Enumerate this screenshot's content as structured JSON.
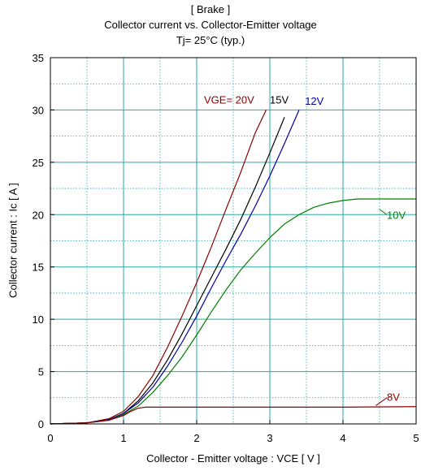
{
  "title": {
    "line1": "[ Brake ]",
    "line2": "Collector current  vs.  Collector-Emitter voltage",
    "line3": "Tj= 25°C  (typ.)"
  },
  "chart_data": {
    "type": "line",
    "title": "Collector current  vs.  Collector-Emitter voltage",
    "xlabel": "Collector - Emitter voltage  :  VCE  [ V ]",
    "ylabel": "Collector current  :  Ic  [ A ]",
    "xlim": [
      0,
      5
    ],
    "ylim": [
      0,
      35
    ],
    "x_ticks": [
      "0",
      "1",
      "2",
      "3",
      "4",
      "5"
    ],
    "y_ticks": [
      "0",
      "5",
      "10",
      "15",
      "20",
      "25",
      "30",
      "35"
    ],
    "grid": true,
    "series": [
      {
        "name": "VGE= 20V",
        "color": "#8b0000",
        "x": [
          0,
          0.5,
          0.8,
          1.0,
          1.2,
          1.4,
          1.6,
          1.8,
          2.0,
          2.2,
          2.4,
          2.6,
          2.8,
          2.95
        ],
        "y": [
          0,
          0.1,
          0.5,
          1.2,
          2.6,
          4.6,
          7.3,
          10.3,
          13.5,
          16.9,
          20.5,
          24.0,
          27.8,
          30.0
        ]
      },
      {
        "name": "15V",
        "color": "#000000",
        "x": [
          0,
          0.5,
          0.8,
          1.0,
          1.2,
          1.4,
          1.6,
          1.8,
          2.0,
          2.2,
          2.4,
          2.6,
          2.8,
          3.0,
          3.2
        ],
        "y": [
          0,
          0.1,
          0.4,
          1.0,
          2.2,
          3.9,
          6.1,
          8.6,
          11.3,
          14.0,
          16.7,
          19.5,
          22.6,
          25.9,
          29.3
        ]
      },
      {
        "name": "12V",
        "color": "#0000a0",
        "x": [
          0,
          0.5,
          0.8,
          1.0,
          1.2,
          1.4,
          1.6,
          1.8,
          2.0,
          2.2,
          2.4,
          2.6,
          2.8,
          3.0,
          3.2,
          3.4
        ],
        "y": [
          0,
          0.1,
          0.4,
          1.0,
          2.0,
          3.5,
          5.5,
          7.8,
          10.3,
          13.0,
          15.6,
          18.1,
          20.8,
          23.7,
          26.8,
          30.0
        ]
      },
      {
        "name": "10V",
        "color": "#008000",
        "x": [
          0,
          0.5,
          0.8,
          1.0,
          1.2,
          1.4,
          1.6,
          1.8,
          2.0,
          2.2,
          2.4,
          2.6,
          2.8,
          3.0,
          3.2,
          3.4,
          3.6,
          3.8,
          4.0,
          4.2,
          4.5,
          5.0
        ],
        "y": [
          0,
          0.1,
          0.35,
          0.9,
          1.7,
          3.0,
          4.6,
          6.4,
          8.5,
          10.7,
          12.8,
          14.7,
          16.3,
          17.8,
          19.1,
          20.0,
          20.7,
          21.1,
          21.35,
          21.5,
          21.5,
          21.5
        ]
      },
      {
        "name": "8V",
        "color": "#8b0000",
        "x": [
          0,
          0.5,
          0.8,
          1.0,
          1.1,
          1.2,
          1.3,
          1.5,
          2.0,
          3.0,
          4.0,
          5.0
        ],
        "y": [
          0,
          0.1,
          0.35,
          0.8,
          1.2,
          1.5,
          1.6,
          1.6,
          1.6,
          1.6,
          1.6,
          1.65
        ]
      }
    ]
  },
  "colors": {
    "grid": "#2aa7a7",
    "axis": "#000000"
  }
}
